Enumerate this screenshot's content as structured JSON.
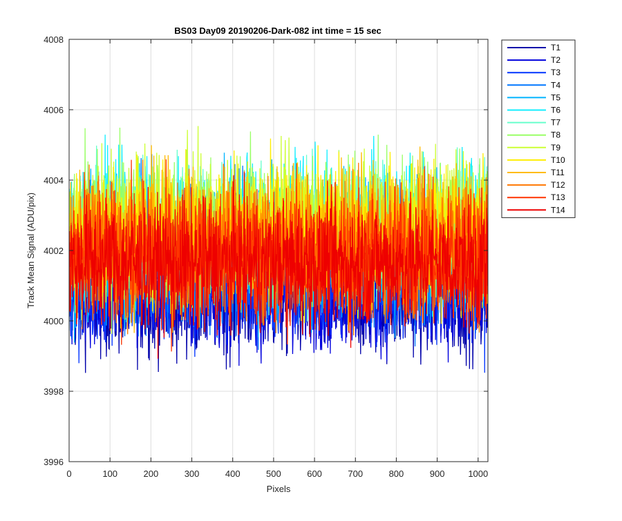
{
  "chart_data": {
    "type": "line",
    "title": "BS03 Day09 20190206-Dark-082 int time = 15 sec",
    "xlabel": "Pixels",
    "ylabel": "Track Mean Signal (ADU/pix)",
    "xlim": [
      0,
      1024
    ],
    "ylim": [
      3996,
      4008
    ],
    "xticks": [
      0,
      100,
      200,
      300,
      400,
      500,
      600,
      700,
      800,
      900,
      1000
    ],
    "yticks": [
      3996,
      3998,
      4000,
      4002,
      4004,
      4006,
      4008
    ],
    "xtick_labels": [
      "0",
      "100",
      "200",
      "300",
      "400",
      "500",
      "600",
      "700",
      "800",
      "900",
      "1000"
    ],
    "ytick_labels": [
      "3996",
      "3998",
      "4000",
      "4002",
      "4004",
      "4006",
      "4008"
    ],
    "grid": true,
    "legend_position": "outside-top-right",
    "n_points": 1024,
    "series": [
      {
        "name": "T1",
        "color": "#0000aa",
        "mean": 4000.6,
        "spread": 0.8
      },
      {
        "name": "T2",
        "color": "#0000dd",
        "mean": 4000.8,
        "spread": 0.8
      },
      {
        "name": "T3",
        "color": "#0033ff",
        "mean": 4001.2,
        "spread": 0.9
      },
      {
        "name": "T4",
        "color": "#0077ff",
        "mean": 4001.8,
        "spread": 1.0
      },
      {
        "name": "T5",
        "color": "#00b4ff",
        "mean": 4002.1,
        "spread": 1.0
      },
      {
        "name": "T6",
        "color": "#11eeff",
        "mean": 4002.6,
        "spread": 1.0
      },
      {
        "name": "T7",
        "color": "#66ffcc",
        "mean": 4002.5,
        "spread": 1.0
      },
      {
        "name": "T8",
        "color": "#99ff66",
        "mean": 4002.7,
        "spread": 1.0
      },
      {
        "name": "T9",
        "color": "#ccff33",
        "mean": 4002.6,
        "spread": 1.0
      },
      {
        "name": "T10",
        "color": "#ffee00",
        "mean": 4002.5,
        "spread": 1.0
      },
      {
        "name": "T11",
        "color": "#ffbb00",
        "mean": 4002.3,
        "spread": 1.0
      },
      {
        "name": "T12",
        "color": "#ff7700",
        "mean": 4002.1,
        "spread": 1.0
      },
      {
        "name": "T13",
        "color": "#ff3300",
        "mean": 4001.8,
        "spread": 1.0
      },
      {
        "name": "T14",
        "color": "#ee0000",
        "mean": 4001.6,
        "spread": 0.9
      }
    ]
  }
}
